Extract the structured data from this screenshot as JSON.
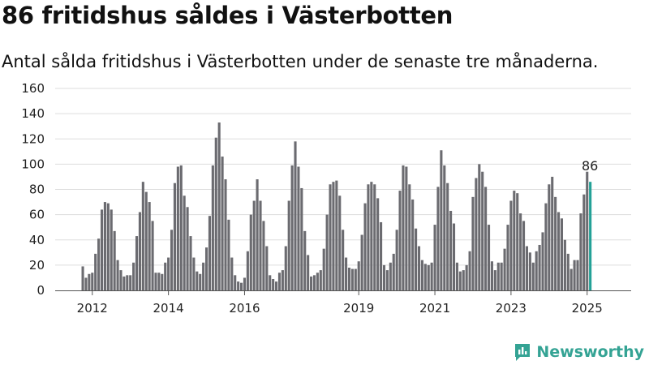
{
  "header": {
    "title": "86 fritidshus såldes i Västerbotten",
    "subtitle": "Antal sålda fritidshus i Västerbotten under de senaste tre månaderna."
  },
  "brand": {
    "name": "Newsworthy",
    "color": "#34a394"
  },
  "colors": {
    "bar": "#6b6b70",
    "highlight": "#23a197"
  },
  "chart_data": {
    "type": "bar",
    "title": "86 fritidshus såldes i Västerbotten",
    "subtitle": "Antal sålda fritidshus i Västerbotten under de senaste tre månaderna.",
    "xlabel": "",
    "ylabel": "",
    "ylim": [
      0,
      160
    ],
    "yticks": [
      0,
      20,
      40,
      60,
      80,
      100,
      120,
      140,
      160
    ],
    "xtick_labels": [
      {
        "label": "2012",
        "index": 3
      },
      {
        "label": "2014",
        "index": 27
      },
      {
        "label": "2016",
        "index": 51
      },
      {
        "label": "2019",
        "index": 87
      },
      {
        "label": "2021",
        "index": 111
      },
      {
        "label": "2023",
        "index": 135
      },
      {
        "label": "2025",
        "index": 159
      }
    ],
    "grid": true,
    "highlight_label": "86",
    "values": [
      19,
      10,
      13,
      14,
      29,
      41,
      64,
      70,
      69,
      64,
      47,
      24,
      16,
      11,
      12,
      12,
      22,
      43,
      62,
      86,
      78,
      70,
      55,
      14,
      14,
      13,
      22,
      26,
      48,
      85,
      98,
      99,
      75,
      66,
      43,
      26,
      15,
      13,
      22,
      34,
      59,
      99,
      121,
      133,
      106,
      88,
      56,
      26,
      12,
      7,
      6,
      10,
      31,
      60,
      71,
      88,
      71,
      55,
      35,
      12,
      9,
      7,
      14,
      16,
      35,
      71,
      99,
      118,
      98,
      81,
      47,
      28,
      11,
      12,
      14,
      16,
      33,
      60,
      84,
      86,
      87,
      75,
      48,
      26,
      18,
      17,
      17,
      23,
      44,
      69,
      84,
      86,
      84,
      73,
      54,
      20,
      16,
      22,
      29,
      48,
      79,
      99,
      98,
      84,
      72,
      49,
      35,
      24,
      21,
      20,
      22,
      52,
      82,
      111,
      99,
      85,
      63,
      53,
      22,
      15,
      16,
      20,
      31,
      74,
      89,
      100,
      94,
      82,
      52,
      23,
      16,
      22,
      22,
      33,
      52,
      71,
      79,
      77,
      61,
      55,
      35,
      30,
      22,
      31,
      36,
      46,
      69,
      84,
      90,
      74,
      62,
      57,
      40,
      29,
      17,
      24,
      24,
      61,
      76,
      94,
      86
    ]
  }
}
